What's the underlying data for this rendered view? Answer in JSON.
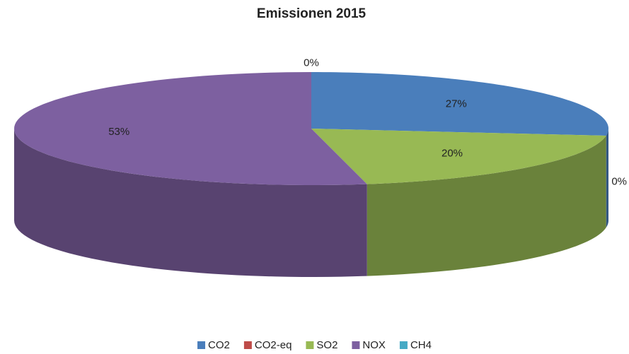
{
  "chart_data": {
    "type": "pie",
    "title": "Emissionen 2015",
    "categories": [
      "CO2",
      "CO2-eq",
      "SO2",
      "NOX",
      "CH4"
    ],
    "values": [
      27,
      0,
      20,
      53,
      0
    ],
    "value_labels": [
      "27%",
      "0%",
      "20%",
      "53%",
      "0%"
    ],
    "colors": [
      "#4a7ebb",
      "#be4b48",
      "#98b954",
      "#7d60a0",
      "#46aac5"
    ],
    "legend": "bottom"
  }
}
